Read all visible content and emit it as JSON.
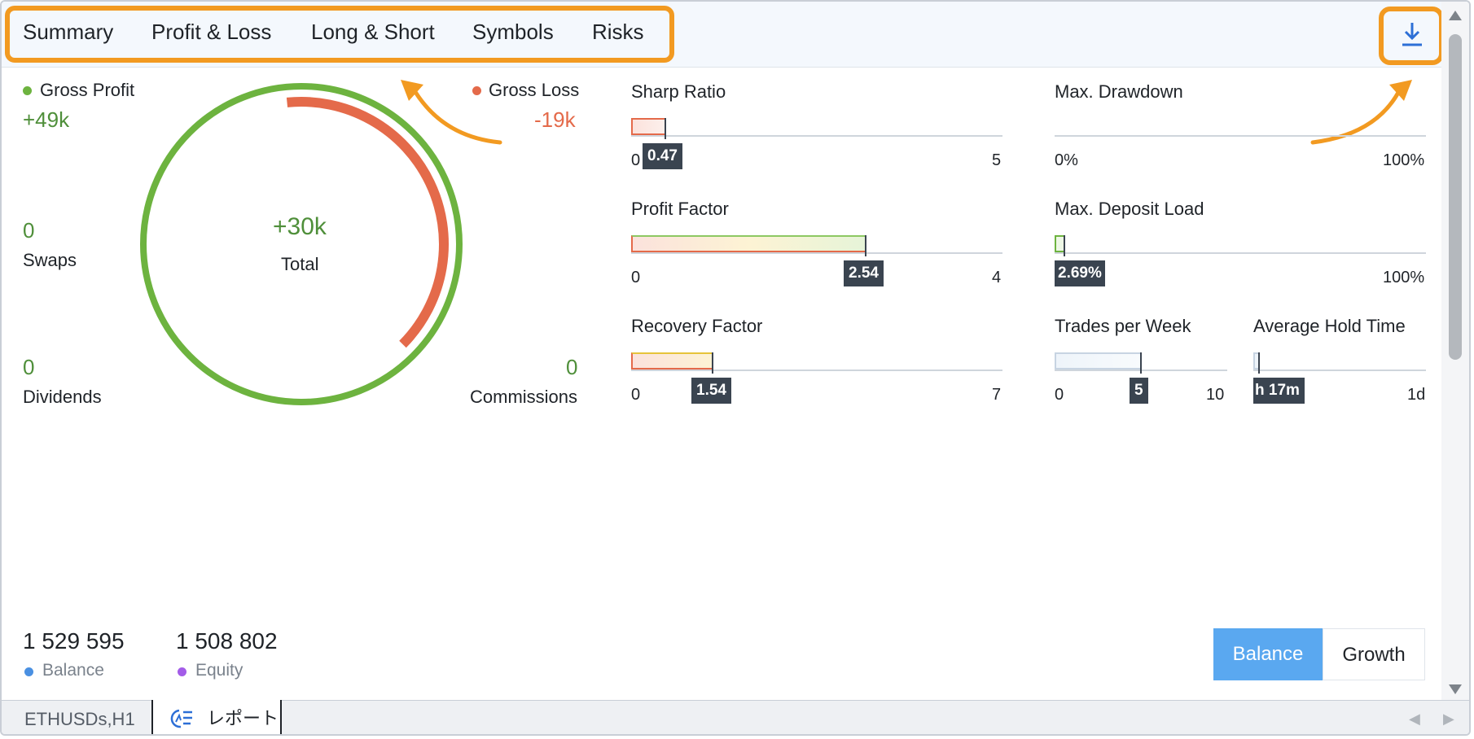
{
  "tabs": [
    "Summary",
    "Profit & Loss",
    "Long & Short",
    "Symbols",
    "Risks"
  ],
  "download_icon": "download-icon",
  "pnl": {
    "gross_profit_label": "Gross Profit",
    "gross_profit_value": "+49k",
    "gross_loss_label": "Gross Loss",
    "gross_loss_value": "-19k",
    "total_value": "+30k",
    "total_label": "Total",
    "swaps_value": "0",
    "swaps_label": "Swaps",
    "dividends_value": "0",
    "dividends_label": "Dividends",
    "commissions_value": "0",
    "commissions_label": "Commissions",
    "profit_fraction": 1.0,
    "loss_fraction": 0.39
  },
  "metrics": {
    "sharp_ratio": {
      "title": "Sharp Ratio",
      "value": "0.47",
      "min": "0",
      "max": "5"
    },
    "profit_factor": {
      "title": "Profit Factor",
      "value": "2.54",
      "min": "0",
      "max": "4"
    },
    "recovery_factor": {
      "title": "Recovery Factor",
      "value": "1.54",
      "min": "0",
      "max": "7"
    },
    "max_drawdown": {
      "title": "Max. Drawdown",
      "min": "0%",
      "max": "100%"
    },
    "max_deposit_load": {
      "title": "Max. Deposit Load",
      "value": "2.69%",
      "min": "",
      "max": "100%"
    },
    "trades_per_week": {
      "title": "Trades per Week",
      "value": "5",
      "min": "0",
      "max": "10"
    },
    "avg_hold_time": {
      "title": "Average Hold Time",
      "value": "h 17m",
      "min": "",
      "max": "1d"
    }
  },
  "summary": {
    "balance_value": "1 529 595",
    "balance_label": "Balance",
    "equity_value": "1 508 802",
    "equity_label": "Equity"
  },
  "toggle": {
    "balance": "Balance",
    "growth": "Growth",
    "active": "Balance"
  },
  "bottom_tabs": {
    "chart": "ETHUSDs,H1",
    "report": "レポート"
  },
  "colors": {
    "accent_orange": "#f29a21",
    "profit_green": "#6db33f",
    "loss_red": "#e46a4a",
    "tooltip_bg": "#3a4450",
    "active_blue": "#5aa8f0",
    "balance_dot": "#4a90e2",
    "equity_dot": "#a35ce8",
    "download_blue": "#2d6fd6"
  }
}
